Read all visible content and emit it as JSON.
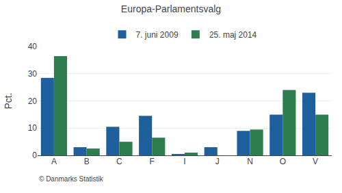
{
  "chart_data": {
    "type": "bar",
    "title": "Europa-Parlamentsvalg",
    "categories": [
      "A",
      "B",
      "C",
      "F",
      "I",
      "J",
      "N",
      "O",
      "V"
    ],
    "series": [
      {
        "name": "7. juni 2009",
        "color": "#1f5f9e",
        "values": [
          28.5,
          3.0,
          10.5,
          14.5,
          0.5,
          3.0,
          9.0,
          15.0,
          23.0
        ]
      },
      {
        "name": "25. maj 2014",
        "color": "#2e7d4f",
        "values": [
          36.5,
          2.5,
          5.0,
          6.5,
          1.0,
          0.0,
          9.5,
          24.0,
          15.0
        ]
      }
    ],
    "ylabel": "Pct.",
    "annotations": [
      "© Danmarks Statistik"
    ],
    "ylim": [
      0,
      40
    ],
    "yticks": [
      0,
      10,
      20,
      30,
      40
    ],
    "grid": true,
    "legend": "top"
  }
}
